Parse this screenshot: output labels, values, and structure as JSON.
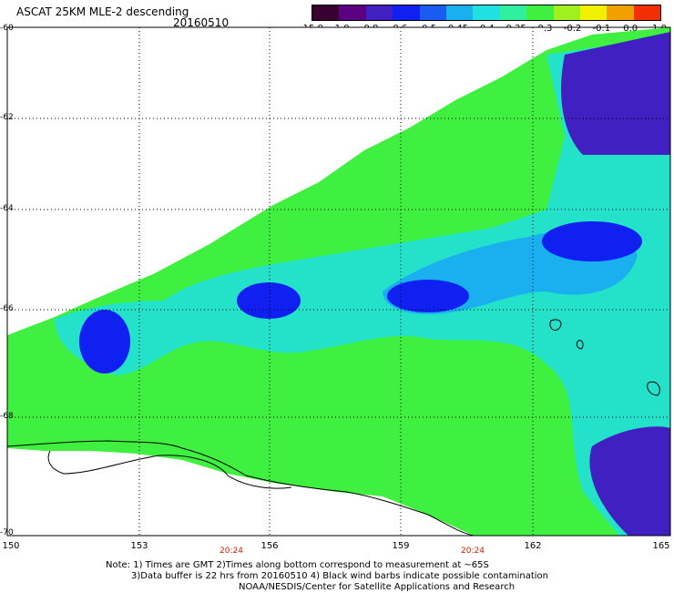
{
  "title": "ASCAT 25KM MLE-2 descending",
  "date": "20160510",
  "colorbar": {
    "labels": [
      "-15.0",
      "-1.0",
      "-0.8",
      "-0.6",
      "-0.5",
      "-0.45",
      "-0.4",
      "-0.35",
      "-0.3",
      "-0.2",
      "-0.1",
      "0.0",
      "1.0"
    ],
    "colors": [
      "#3a0030",
      "#5a0080",
      "#4020c0",
      "#1020f0",
      "#1a5cf0",
      "#1ab0f0",
      "#20e0e0",
      "#30f0a0",
      "#40f040",
      "#a0f020",
      "#f0f000",
      "#f0a000",
      "#f03000"
    ]
  },
  "map": {
    "lat_labels": [
      "-60",
      "-62",
      "-64",
      "-66",
      "-68",
      "-70"
    ],
    "lon_labels": [
      "150",
      "153",
      "156",
      "159",
      "162",
      "165"
    ],
    "time_labels": [
      "20:24",
      "20:24"
    ]
  },
  "notes": [
    "Note: 1) Times are GMT 2)Times along bottom correspond to measurement at ~65S",
    "3)Data buffer is 22 hrs from 20160510 4) Black wind barbs indicate possible contamination",
    "NOAA/NESDIS/Center for Satellite Applications and Research"
  ]
}
